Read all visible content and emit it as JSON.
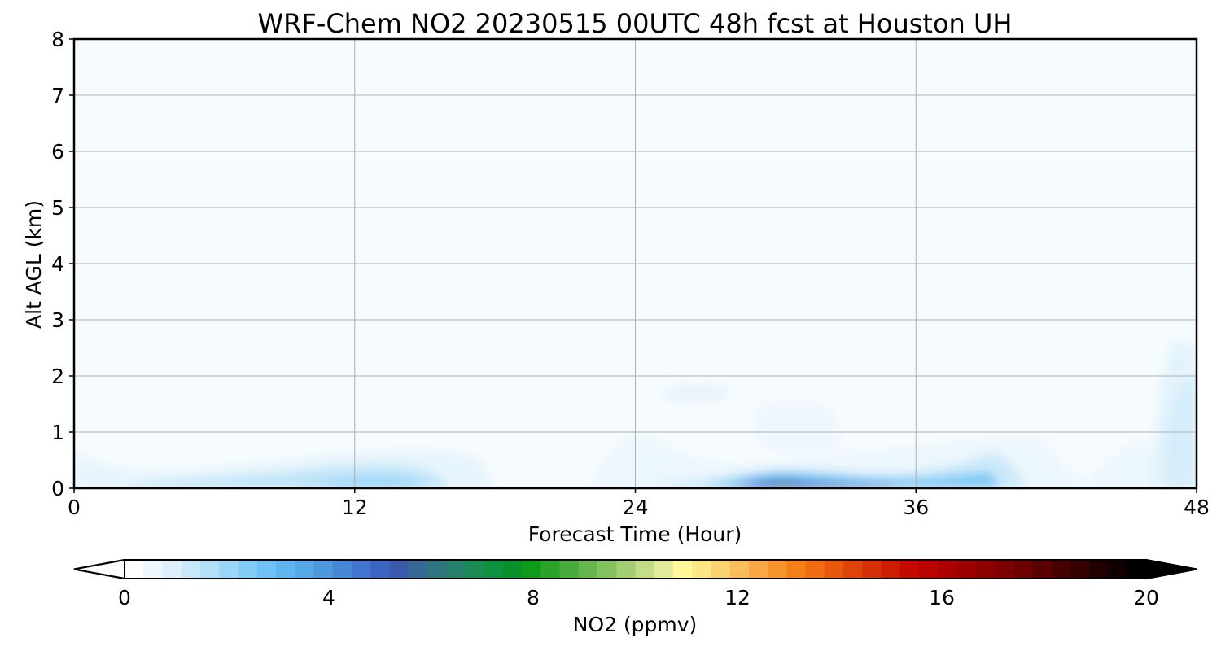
{
  "chart_data": {
    "type": "heatmap",
    "title": "WRF-Chem NO2  20230515 00UTC 48h fcst at Houston UH",
    "xlabel": "Forecast Time (Hour)",
    "ylabel": "Alt AGL (km)",
    "xlim": [
      0,
      48
    ],
    "ylim": [
      0,
      8
    ],
    "xticks": [
      "0",
      "12",
      "24",
      "36",
      "48"
    ],
    "yticks": [
      "0",
      "1",
      "2",
      "3",
      "4",
      "5",
      "6",
      "7",
      "8"
    ],
    "grid": true,
    "colorbar": {
      "label": "NO2  (ppmv)",
      "range": [
        0,
        20
      ],
      "ticks": [
        "0",
        "4",
        "8",
        "12",
        "16",
        "20"
      ],
      "extend": "both",
      "colors": [
        "#ffffff",
        "#eef7fd",
        "#ddf0fb",
        "#c8e8fa",
        "#b2e0f9",
        "#9ad6f8",
        "#82ccf7",
        "#6ec2f5",
        "#5fb6ee",
        "#56a8e6",
        "#4e98de",
        "#4787d6",
        "#4076cd",
        "#3a66c0",
        "#3a5aac",
        "#376996",
        "#2f7580",
        "#26806b",
        "#1b8a55",
        "#10913f",
        "#07912a",
        "#109a1a",
        "#2ba22a",
        "#48ab3b",
        "#66b64e",
        "#84c260",
        "#a3cf74",
        "#c2dc87",
        "#e2ea99",
        "#fff79a",
        "#fde685",
        "#fbd272",
        "#f9bd5d",
        "#f8a946",
        "#f6952e",
        "#f38118",
        "#ef6d10",
        "#e7580d",
        "#de4309",
        "#d42f06",
        "#cc1d02",
        "#c40a00",
        "#b90400",
        "#ad0100",
        "#9e0000",
        "#8d0000",
        "#7c0000",
        "#6b0000",
        "#590000",
        "#470000",
        "#340000",
        "#220000",
        "#120000",
        "#000000"
      ]
    },
    "series": [
      {
        "values": [
          [
            0.35,
            0.4,
            0.85,
            1.6,
            0.6,
            0.2,
            0.25,
            0.4,
            0.55,
            0.3,
            1.6,
            0.5,
            0.1
          ],
          [
            0.15,
            0.2,
            0.3,
            0.5,
            0.25,
            0.1,
            0.1,
            0.2,
            0.3,
            0.15,
            0.4,
            0.2,
            0.08
          ],
          [
            0.08,
            0.08,
            0.1,
            0.2,
            0.12,
            0.05,
            0.1,
            0.1,
            0.25,
            0.1,
            0.12,
            0.15,
            0.05
          ],
          [
            0.03,
            0.05,
            0.05,
            0.05,
            0.05,
            0.03,
            0.1,
            0.15,
            0.12,
            0.05,
            0.05,
            0.08,
            0.03
          ],
          [
            0.02,
            0.02,
            0.02,
            0.02,
            0.02,
            0.02,
            0.02,
            0.02,
            0.02,
            0.02,
            0.02,
            0.02,
            0.02
          ]
        ]
      }
    ]
  }
}
